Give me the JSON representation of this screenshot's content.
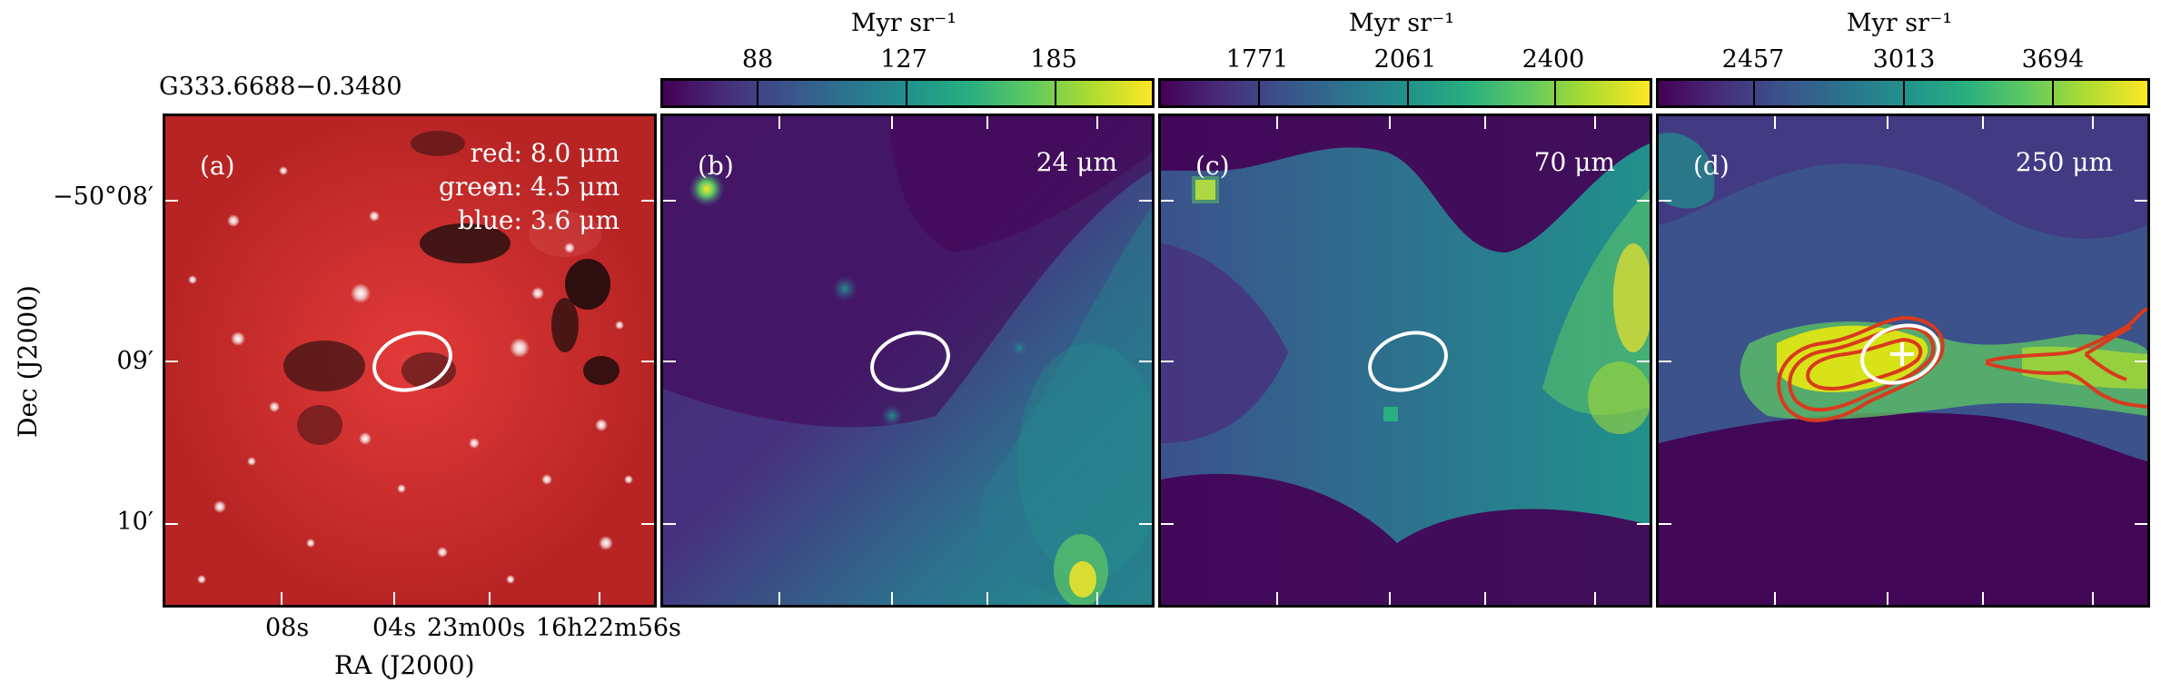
{
  "figure": {
    "target_name": "G333.6688−0.3480",
    "y_axis_label": "Dec (J2000)",
    "x_axis_label": "RA (J2000)",
    "y_ticks": [
      "−50°08′",
      "09′",
      "10′"
    ],
    "x_ticks": [
      "08ˢ",
      "04ˢ",
      "23ᵐᴰ00ˢ",
      "16ʰ22ᵐ56ˢ"
    ],
    "x_ticks_display": [
      "08s",
      "04s",
      "23m00s",
      "16h22m56s"
    ]
  },
  "panels": [
    {
      "id": "a",
      "label": "(a)",
      "legend": [
        "red: 8.0 μm",
        "green: 4.5 μm",
        "blue: 3.6 μm"
      ],
      "colormap": "rgb-composite"
    },
    {
      "id": "b",
      "label": "(b)",
      "band": "24 μm",
      "colorbar_unit": "Myr sr⁻¹",
      "colorbar_ticks": [
        "88",
        "127",
        "185"
      ],
      "colormap": "viridis"
    },
    {
      "id": "c",
      "label": "(c)",
      "band": "70 μm",
      "colorbar_unit": "Myr sr⁻¹",
      "colorbar_ticks": [
        "1771",
        "2061",
        "2400"
      ],
      "colormap": "viridis"
    },
    {
      "id": "d",
      "label": "(d)",
      "band": "250 μm",
      "colorbar_unit": "Myr sr⁻¹",
      "colorbar_ticks": [
        "2457",
        "3013",
        "3694"
      ],
      "colormap": "viridis",
      "overlay": "red contours with cross marker"
    }
  ],
  "colors": {
    "ellipse": "#ffffff",
    "contour": "#d93a1e",
    "composite_base": "#c42a2a"
  }
}
